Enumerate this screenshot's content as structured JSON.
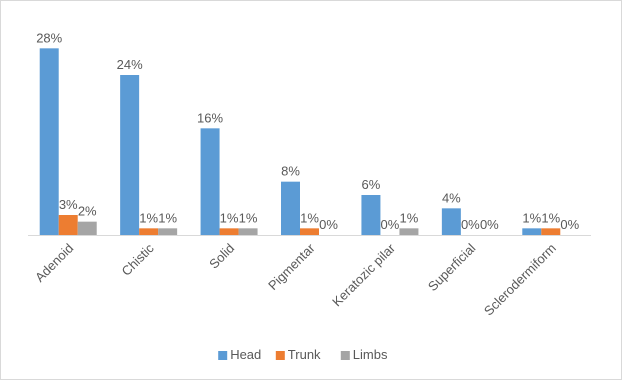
{
  "chart_data": {
    "type": "bar",
    "categories": [
      "Adenoid",
      "Chistic",
      "Solid",
      "Pigmentar",
      "Keratozic pilar",
      "Superficial",
      "Sclerodermiform"
    ],
    "series": [
      {
        "name": "Head",
        "color": "#5b9bd5",
        "values": [
          28,
          24,
          16,
          8,
          6,
          4,
          1
        ],
        "labels": [
          "28%",
          "24%",
          "16%",
          "8%",
          "6%",
          "4%",
          "1%"
        ]
      },
      {
        "name": "Trunk",
        "color": "#ed7d31",
        "values": [
          3,
          1,
          1,
          1,
          0,
          0,
          1
        ],
        "labels": [
          "3%",
          "1%",
          "1%",
          "1%",
          "0%",
          "0%",
          "1%"
        ]
      },
      {
        "name": "Limbs",
        "color": "#a5a5a5",
        "values": [
          2,
          1,
          1,
          0,
          1,
          0,
          0
        ],
        "labels": [
          "2%",
          "1%",
          "1%",
          "0%",
          "1%",
          "0%",
          "0%"
        ]
      }
    ],
    "unit": "%",
    "ylim": [
      0,
      30
    ],
    "grid": false,
    "legend_position": "bottom"
  },
  "colors": {
    "axis": "#d9d9d9",
    "text": "#595959"
  }
}
